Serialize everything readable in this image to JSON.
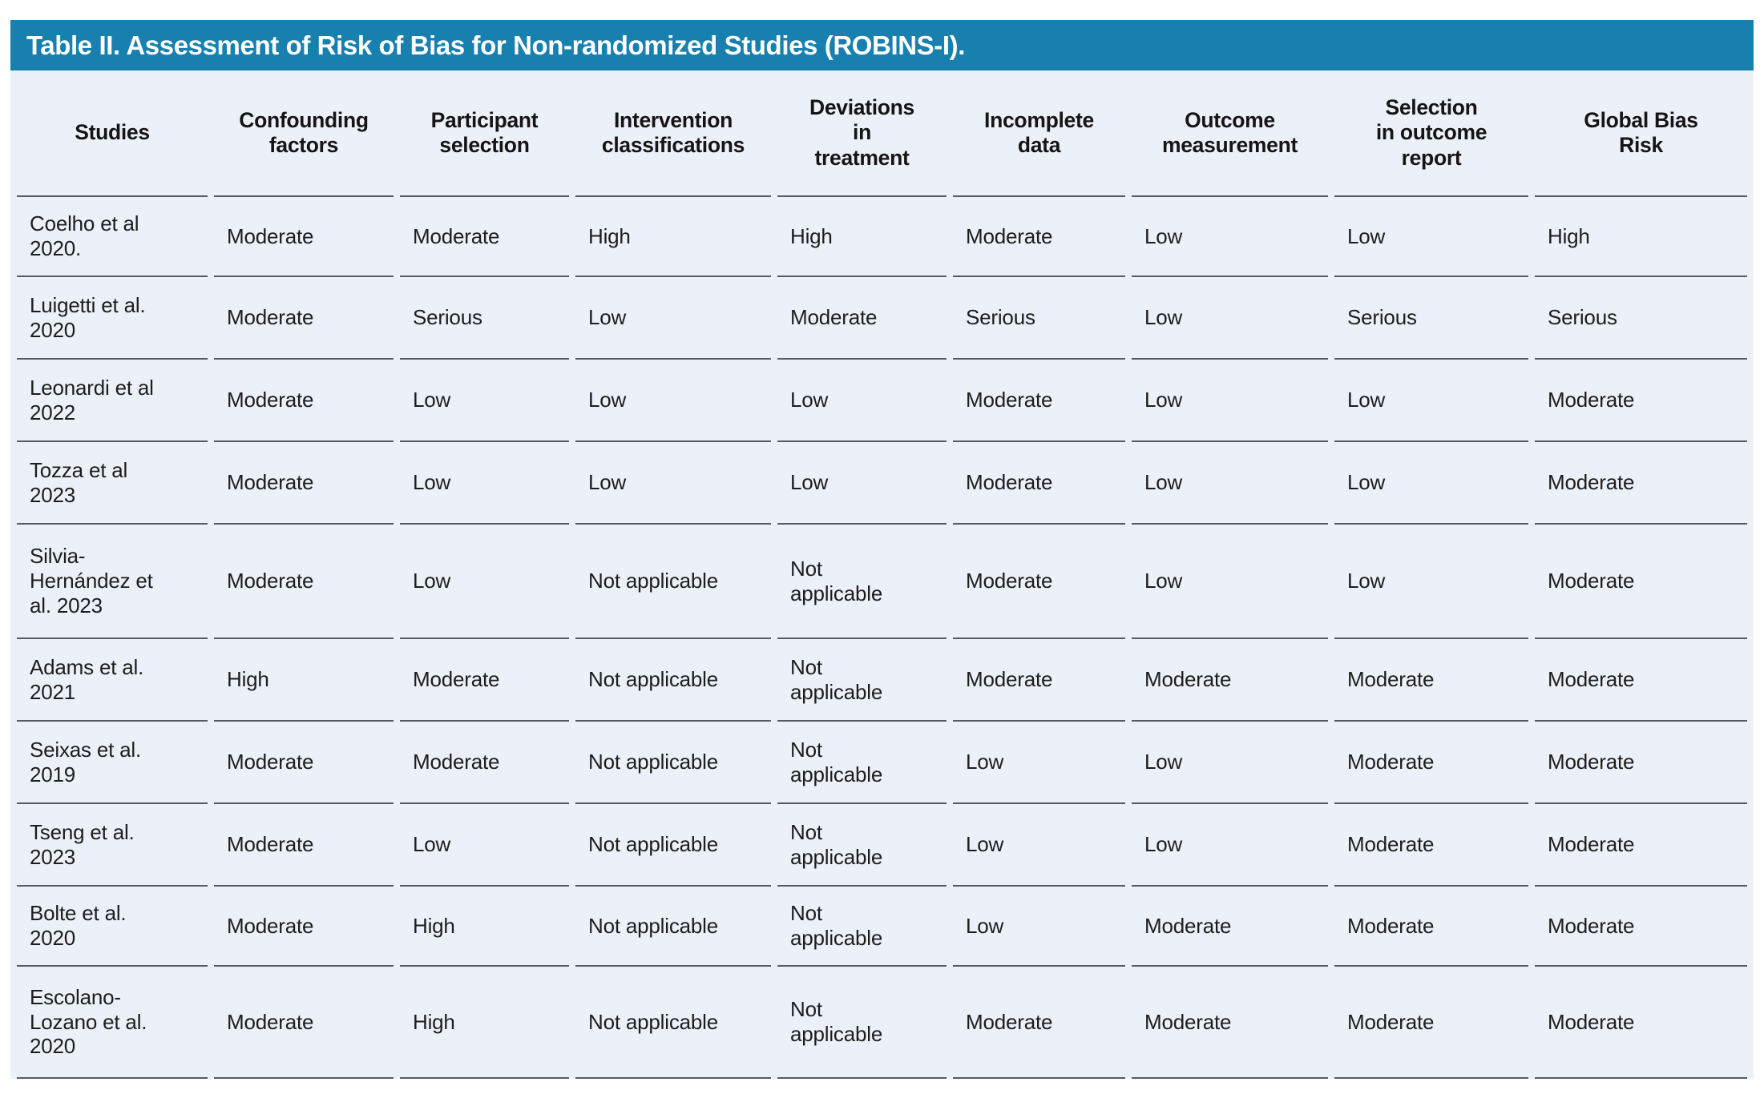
{
  "title": "Table II. Assessment of Risk of Bias for Non-randomized Studies (ROBINS-I).",
  "colors": {
    "title_bar_background": "#1780AF",
    "title_text": "#FFFFFF",
    "table_background": "#ECF0F8",
    "divider_line": "#565A61",
    "body_text": "#1D1D1D"
  },
  "table": {
    "columns": [
      "Studies",
      "Confounding\nfactors",
      "Participant\nselection",
      "Intervention\nclassifications",
      "Deviations\nin\ntreatment",
      "Incomplete\ndata",
      "Outcome\nmeasurement",
      "Selection\nin outcome\nreport",
      "Global Bias\nRisk"
    ],
    "rows": [
      {
        "study": "Coelho et al\n2020.",
        "values": [
          "Moderate",
          "Moderate",
          "High",
          "High",
          "Moderate",
          "Low",
          "Low",
          "High"
        ]
      },
      {
        "study": "Luigetti et al.\n2020",
        "values": [
          "Moderate",
          "Serious",
          "Low",
          "Moderate",
          "Serious",
          "Low",
          "Serious",
          "Serious"
        ]
      },
      {
        "study": "Leonardi et al\n2022",
        "values": [
          "Moderate",
          "Low",
          "Low",
          "Low",
          "Moderate",
          "Low",
          "Low",
          "Moderate"
        ]
      },
      {
        "study": "Tozza et al\n2023",
        "values": [
          "Moderate",
          "Low",
          "Low",
          "Low",
          "Moderate",
          "Low",
          "Low",
          "Moderate"
        ]
      },
      {
        "study": "Silvia-\nHernández et\nal. 2023",
        "values": [
          "Moderate",
          "Low",
          "Not applicable",
          "Not\napplicable",
          "Moderate",
          "Low",
          "Low",
          "Moderate"
        ]
      },
      {
        "study": "Adams et al.\n2021",
        "values": [
          "High",
          "Moderate",
          "Not applicable",
          "Not\napplicable",
          "Moderate",
          "Moderate",
          "Moderate",
          "Moderate"
        ]
      },
      {
        "study": "Seixas et al.\n2019",
        "values": [
          "Moderate",
          "Moderate",
          "Not applicable",
          "Not\napplicable",
          "Low",
          "Low",
          "Moderate",
          "Moderate"
        ]
      },
      {
        "study": "Tseng et al.\n2023",
        "values": [
          "Moderate",
          "Low",
          "Not applicable",
          "Not\napplicable",
          "Low",
          "Low",
          "Moderate",
          "Moderate"
        ]
      },
      {
        "study": "Bolte et al.\n2020",
        "values": [
          "Moderate",
          "High",
          "Not applicable",
          "Not\napplicable",
          "Low",
          "Moderate",
          "Moderate",
          "Moderate"
        ]
      },
      {
        "study": "Escolano-\nLozano et al.\n2020",
        "values": [
          "Moderate",
          "High",
          "Not applicable",
          "Not\napplicable",
          "Moderate",
          "Moderate",
          "Moderate",
          "Moderate"
        ]
      }
    ]
  }
}
